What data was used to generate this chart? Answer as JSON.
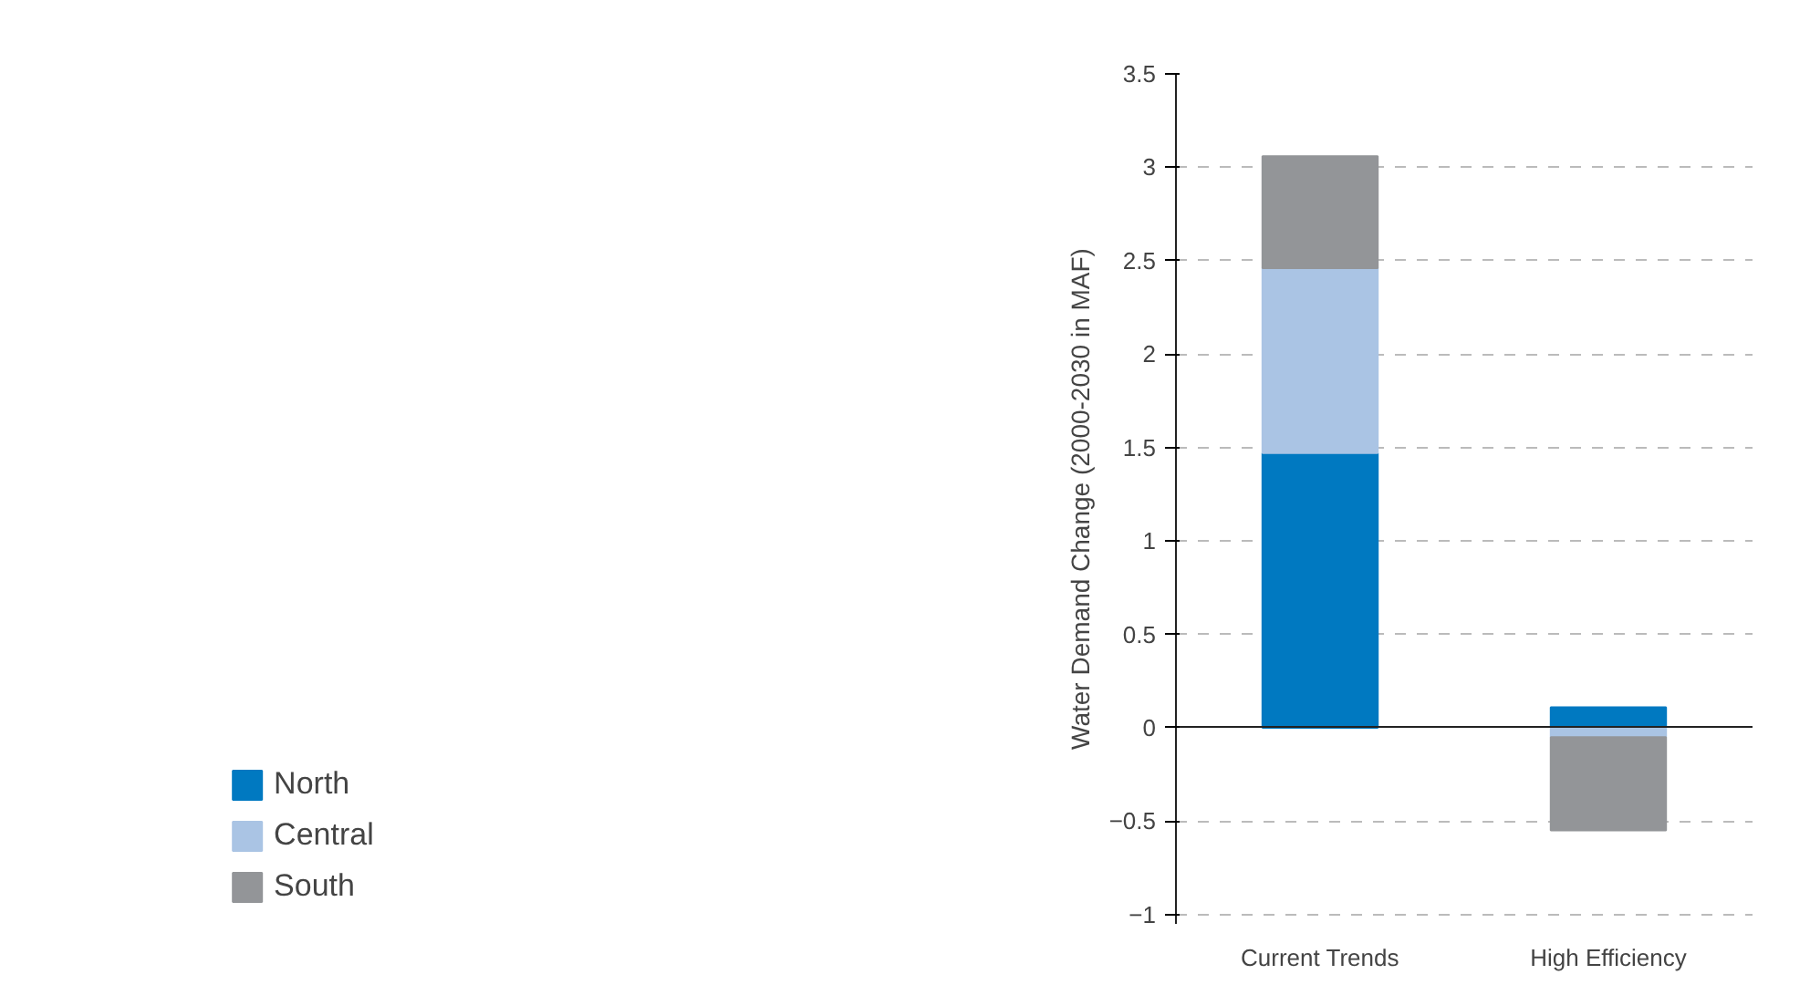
{
  "chart_data": {
    "type": "bar",
    "stacked": true,
    "ylabel": "Water Demand Change (2000-2030 in MAF)",
    "categories": [
      "Current Trends",
      "High Efficiency"
    ],
    "series": [
      {
        "name": "North",
        "color": "#0079c1",
        "values": [
          1.47,
          0.11
        ]
      },
      {
        "name": "Central",
        "color": "#aac4e4",
        "values": [
          0.99,
          -0.05
        ]
      },
      {
        "name": "South",
        "color": "#939598",
        "values": [
          0.6,
          -0.5
        ]
      }
    ],
    "ylim": [
      -1.05,
      3.5
    ],
    "yticks": [
      -1,
      -0.5,
      0,
      0.5,
      1,
      1.5,
      2,
      2.5,
      3,
      3.5
    ],
    "grid": "y",
    "legend": "bottom left"
  }
}
